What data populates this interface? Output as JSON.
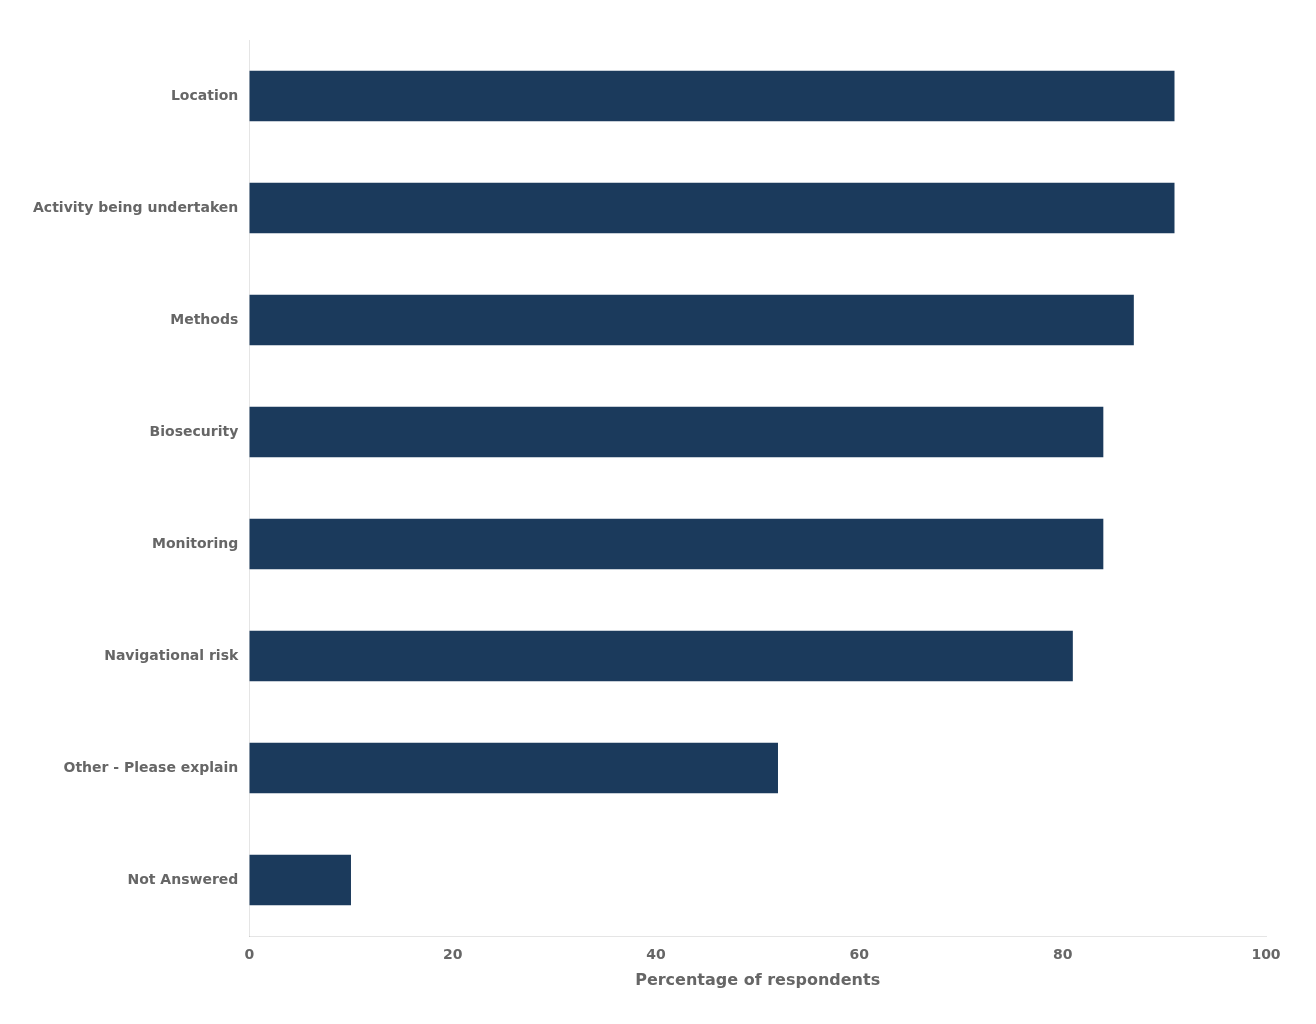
{
  "chart_data": {
    "type": "bar",
    "orientation": "horizontal",
    "categories": [
      "Not Answered",
      "Other - Please explain",
      "Navigational risk",
      "Monitoring",
      "Biosecurity",
      "Methods",
      "Activity being undertaken",
      "Location"
    ],
    "values": [
      10,
      52,
      81,
      84,
      84,
      87,
      91,
      91
    ],
    "color": "#1b3a5c",
    "xlabel": "Percentage of respondents",
    "xlim": [
      0,
      100
    ],
    "xticks": [
      0,
      20,
      40,
      60,
      80,
      100
    ],
    "grid": false,
    "legend": false
  }
}
